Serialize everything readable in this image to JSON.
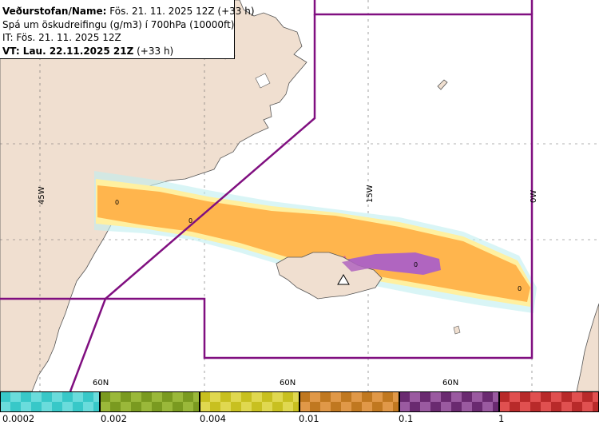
{
  "header": {
    "line1_bold": "Veðurstofan/Name:",
    "line1_rest": " Fös. 21. 11. 2025 12Z (+33 h)",
    "line2": "Spá um öskudreifingu (g/m3) í 700hPa (10000ft)",
    "line3": "IT: Fös. 21. 11. 2025 12Z",
    "line4_bold": "VT: Lau. 22.11.2025 21Z",
    "line4_rest": " (+33 h)"
  },
  "grid_labels": {
    "lon_45w": "45W",
    "lon_15w": "15W",
    "lon_0w": "0W",
    "lat_60n": "60N"
  },
  "contour_labels": [
    "0",
    "0",
    "0",
    "0"
  ],
  "legend": {
    "bins": [
      {
        "label": "0.0002",
        "color_a": "#38c8c8",
        "color_b": "#6adcdc"
      },
      {
        "label": "0.002",
        "color_a": "#7a9a20",
        "color_b": "#9ab83a"
      },
      {
        "label": "0.004",
        "color_a": "#c8c020",
        "color_b": "#e0d850"
      },
      {
        "label": "0.01",
        "color_a": "#c07820",
        "color_b": "#e09848"
      },
      {
        "label": "0.1",
        "color_a": "#6a2a70",
        "color_b": "#9a5aa0"
      },
      {
        "label": "1",
        "color_a": "#b82a2a",
        "color_b": "#e05050"
      }
    ]
  },
  "colors": {
    "land": "#f0dfd0",
    "sea": "#ffffff",
    "boundary": "#800f80",
    "ash_orange": "#ffb54d",
    "ash_purple": "#b065c0"
  },
  "icons": {
    "volcano": "triangle-volcano-icon"
  }
}
